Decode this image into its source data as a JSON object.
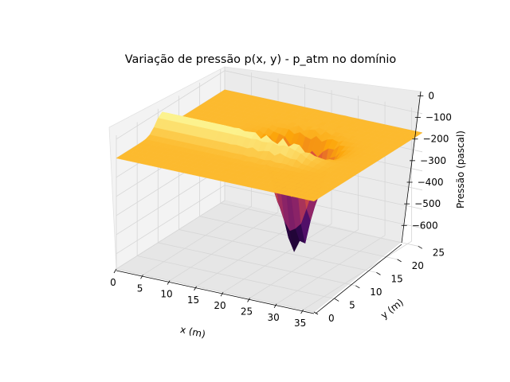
{
  "chart_data": {
    "type": "surface3d",
    "title": "Variação de pressão p(x, y) - p_atm no domínio",
    "xlabel": "x (m)",
    "ylabel": "y (m)",
    "zlabel": "Pressão (pascal)",
    "x_ticks": [
      "0",
      "5",
      "10",
      "15",
      "20",
      "25",
      "30",
      "35"
    ],
    "y_ticks": [
      "0",
      "5",
      "10",
      "15",
      "20",
      "25"
    ],
    "z_ticks": [
      "0",
      "−100",
      "−200",
      "−300",
      "−400",
      "−500",
      "−600"
    ],
    "xlim": [
      0,
      37
    ],
    "ylim": [
      0,
      26
    ],
    "zlim": [
      -680,
      20
    ],
    "colormap": "inferno",
    "surface_summary": {
      "baseline_pressure": -100,
      "minimum_pressure": -650,
      "minimum_location_x": 22,
      "minimum_location_y": 15,
      "ridge_pressure_max": 0
    }
  }
}
